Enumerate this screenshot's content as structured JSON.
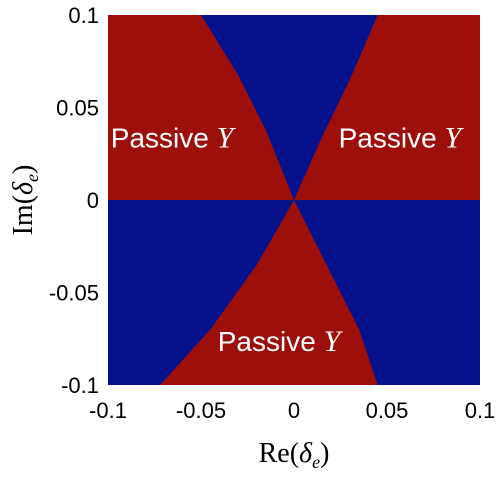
{
  "chart_data": {
    "type": "heatmap",
    "title": "",
    "xlabel": {
      "fn": "Re",
      "open": "(",
      "var": "δ",
      "sub": "e",
      "close": ")"
    },
    "ylabel": {
      "fn": "Im",
      "open": "(",
      "var": "δ",
      "sub": "e",
      "close": ")"
    },
    "xlim": [
      -0.1,
      0.1
    ],
    "ylim": [
      -0.1,
      0.1
    ],
    "x_ticks": [
      "-0.1",
      "-0.05",
      "0",
      "0.05",
      "0.1"
    ],
    "y_ticks": [
      "0.1",
      "0.05",
      "0",
      "-0.05",
      "-0.1"
    ],
    "grid": false,
    "colors": {
      "passive": "#9c0f0b",
      "active": "#06128c"
    },
    "background_region": "active",
    "regions": [
      {
        "name": "upper-left",
        "state": "passive",
        "boundary": [
          [
            -0.1,
            0.0
          ],
          [
            -0.1,
            0.1
          ],
          [
            -0.05,
            0.1
          ],
          [
            -0.03,
            0.0675
          ],
          [
            -0.015,
            0.0375
          ],
          [
            0.0,
            0.0
          ]
        ]
      },
      {
        "name": "upper-right",
        "state": "passive",
        "boundary": [
          [
            0.0,
            0.0
          ],
          [
            0.1,
            0.0
          ],
          [
            0.1,
            0.1
          ],
          [
            0.045,
            0.1
          ],
          [
            0.03,
            0.065
          ],
          [
            0.015,
            0.034
          ]
        ]
      },
      {
        "name": "lower",
        "state": "passive",
        "boundary": [
          [
            0.0,
            0.0
          ],
          [
            0.02,
            -0.04
          ],
          [
            0.035,
            -0.07
          ],
          [
            0.045,
            -0.1
          ],
          [
            -0.072,
            -0.1
          ],
          [
            -0.045,
            -0.07
          ],
          [
            -0.02,
            -0.035
          ]
        ]
      }
    ],
    "annotations": [
      {
        "name": "upper-left",
        "text": "Passive",
        "var": "Y",
        "x": -0.0985,
        "y": 0.0285
      },
      {
        "name": "upper-right",
        "text": "Passive",
        "var": "Y",
        "x": 0.024,
        "y": 0.0285
      },
      {
        "name": "lower",
        "text": "Passive",
        "var": "Y",
        "x": -0.041,
        "y": -0.0815
      }
    ]
  }
}
